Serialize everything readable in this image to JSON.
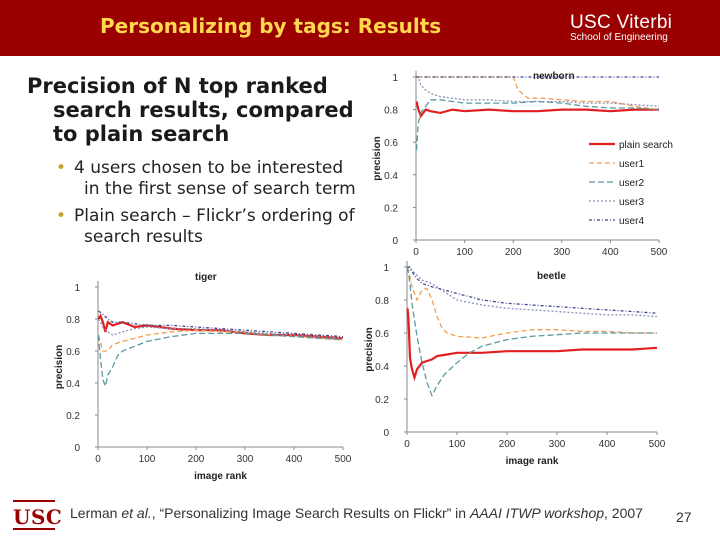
{
  "header": {
    "title": "Personalizing by tags: Results",
    "logo_line1": "USC Viterbi",
    "logo_line2": "School of Engineering"
  },
  "heading": {
    "line1": "Precision of N top ranked",
    "line2": "search results, compared",
    "line3": "to plain search"
  },
  "bullets": [
    {
      "line1": "4 users chosen to be interested",
      "line2": "in the first sense of search term"
    },
    {
      "line1": "Plain search – Flickr’s ordering of",
      "line2": "search results"
    }
  ],
  "colors": {
    "header_bg": "#9a0000",
    "title": "#ffd84d",
    "plain": "#e02020",
    "user1": "#f0a050",
    "user2": "#5a9aa0",
    "user3": "#8890b8",
    "user4": "#404890"
  },
  "chart_data": [
    {
      "type": "line",
      "title": "newborn",
      "xlabel": "",
      "ylabel": "precision",
      "xlim": [
        0,
        500
      ],
      "ylim": [
        0,
        1
      ],
      "xticks": [
        "0",
        "100",
        "200",
        "300",
        "400",
        "500"
      ],
      "yticks": [
        "0",
        "0.2",
        "0.4",
        "0.6",
        "0.8",
        "1"
      ],
      "legend_position": "right",
      "series": [
        {
          "name": "plain search",
          "x": [
            1,
            5,
            10,
            20,
            30,
            50,
            75,
            100,
            150,
            200,
            250,
            300,
            350,
            400,
            450,
            500
          ],
          "y": [
            0.85,
            0.8,
            0.76,
            0.8,
            0.79,
            0.78,
            0.8,
            0.79,
            0.8,
            0.79,
            0.79,
            0.8,
            0.8,
            0.79,
            0.8,
            0.8
          ]
        },
        {
          "name": "user1",
          "x": [
            1,
            50,
            100,
            150,
            200,
            210,
            230,
            260,
            300,
            350,
            400,
            450,
            500
          ],
          "y": [
            1,
            1,
            1,
            1,
            1,
            0.92,
            0.87,
            0.87,
            0.86,
            0.85,
            0.85,
            0.82,
            0.8
          ]
        },
        {
          "name": "user2",
          "x": [
            1,
            3,
            5,
            8,
            12,
            20,
            30,
            50,
            75,
            100,
            150,
            200,
            250,
            300,
            350,
            400,
            450,
            500
          ],
          "y": [
            0.55,
            0.65,
            0.72,
            0.76,
            0.79,
            0.82,
            0.86,
            0.86,
            0.85,
            0.84,
            0.84,
            0.84,
            0.85,
            0.84,
            0.82,
            0.81,
            0.81,
            0.8
          ]
        },
        {
          "name": "user3",
          "x": [
            1,
            5,
            10,
            20,
            30,
            50,
            75,
            100,
            150,
            200,
            250,
            300,
            350,
            400,
            450,
            500
          ],
          "y": [
            1,
            1,
            0.95,
            0.92,
            0.9,
            0.88,
            0.87,
            0.86,
            0.86,
            0.85,
            0.85,
            0.85,
            0.84,
            0.84,
            0.83,
            0.82
          ]
        },
        {
          "name": "user4",
          "x": [
            1,
            50,
            100,
            200,
            300,
            400,
            500
          ],
          "y": [
            1,
            1,
            1,
            1,
            1,
            1,
            1
          ]
        }
      ]
    },
    {
      "type": "line",
      "title": "tiger",
      "xlabel": "image rank",
      "ylabel": "precision",
      "xlim": [
        0,
        500
      ],
      "ylim": [
        0,
        1
      ],
      "xticks": [
        "0",
        "100",
        "200",
        "300",
        "400",
        "500"
      ],
      "yticks": [
        "0",
        "0.2",
        "0.4",
        "0.6",
        "0.8",
        "1"
      ],
      "series": [
        {
          "name": "plain search",
          "x": [
            1,
            5,
            10,
            15,
            20,
            30,
            50,
            75,
            100,
            150,
            200,
            250,
            300,
            350,
            400,
            450,
            500
          ],
          "y": [
            0.8,
            0.82,
            0.78,
            0.72,
            0.78,
            0.76,
            0.78,
            0.75,
            0.76,
            0.74,
            0.73,
            0.73,
            0.71,
            0.7,
            0.7,
            0.69,
            0.68
          ]
        },
        {
          "name": "user1",
          "x": [
            1,
            10,
            20,
            30,
            50,
            75,
            100,
            150,
            200,
            250,
            300,
            350,
            400,
            450,
            500
          ],
          "y": [
            0.7,
            0.6,
            0.6,
            0.64,
            0.66,
            0.68,
            0.7,
            0.72,
            0.73,
            0.72,
            0.72,
            0.7,
            0.69,
            0.68,
            0.67
          ]
        },
        {
          "name": "user2",
          "x": [
            1,
            5,
            10,
            15,
            20,
            30,
            40,
            50,
            75,
            100,
            150,
            200,
            250,
            300,
            350,
            400,
            450,
            500
          ],
          "y": [
            0.7,
            0.55,
            0.42,
            0.38,
            0.45,
            0.5,
            0.57,
            0.6,
            0.63,
            0.66,
            0.69,
            0.71,
            0.71,
            0.71,
            0.7,
            0.69,
            0.68,
            0.67
          ]
        },
        {
          "name": "user3",
          "x": [
            1,
            5,
            10,
            20,
            30,
            50,
            75,
            100,
            150,
            200,
            250,
            300,
            350,
            400,
            450,
            500
          ],
          "y": [
            0.8,
            0.78,
            0.75,
            0.72,
            0.7,
            0.72,
            0.74,
            0.75,
            0.74,
            0.74,
            0.73,
            0.72,
            0.71,
            0.7,
            0.69,
            0.68
          ]
        },
        {
          "name": "user4",
          "x": [
            1,
            10,
            20,
            30,
            50,
            75,
            100,
            150,
            200,
            250,
            300,
            350,
            400,
            450,
            500
          ],
          "y": [
            0.85,
            0.83,
            0.8,
            0.78,
            0.78,
            0.77,
            0.76,
            0.76,
            0.75,
            0.74,
            0.73,
            0.72,
            0.71,
            0.7,
            0.69
          ]
        }
      ]
    },
    {
      "type": "line",
      "title": "beetle",
      "xlabel": "image rank",
      "ylabel": "precision",
      "xlim": [
        0,
        500
      ],
      "ylim": [
        0,
        1
      ],
      "xticks": [
        "0",
        "100",
        "200",
        "300",
        "400",
        "500"
      ],
      "yticks": [
        "0",
        "0.2",
        "0.4",
        "0.6",
        "0.8",
        "1"
      ],
      "series": [
        {
          "name": "plain search",
          "x": [
            1,
            3,
            6,
            10,
            15,
            20,
            30,
            40,
            50,
            60,
            80,
            100,
            150,
            200,
            250,
            300,
            350,
            400,
            450,
            500
          ],
          "y": [
            0.75,
            0.68,
            0.45,
            0.38,
            0.33,
            0.38,
            0.42,
            0.43,
            0.44,
            0.46,
            0.47,
            0.48,
            0.48,
            0.49,
            0.49,
            0.49,
            0.5,
            0.5,
            0.5,
            0.51
          ]
        },
        {
          "name": "user1",
          "x": [
            1,
            5,
            10,
            20,
            30,
            40,
            50,
            60,
            70,
            80,
            100,
            150,
            200,
            250,
            300,
            350,
            400,
            450,
            500
          ],
          "y": [
            1,
            0.95,
            0.88,
            0.8,
            0.86,
            0.87,
            0.8,
            0.7,
            0.63,
            0.6,
            0.58,
            0.57,
            0.6,
            0.62,
            0.62,
            0.61,
            0.61,
            0.6,
            0.6
          ]
        },
        {
          "name": "user2",
          "x": [
            1,
            5,
            10,
            20,
            30,
            40,
            50,
            60,
            75,
            100,
            125,
            150,
            200,
            250,
            300,
            350,
            400,
            450,
            500
          ],
          "y": [
            1,
            0.92,
            0.78,
            0.58,
            0.42,
            0.3,
            0.22,
            0.28,
            0.35,
            0.42,
            0.48,
            0.52,
            0.56,
            0.58,
            0.59,
            0.6,
            0.6,
            0.6,
            0.6
          ]
        },
        {
          "name": "user3",
          "x": [
            1,
            5,
            10,
            20,
            30,
            50,
            75,
            100,
            150,
            200,
            250,
            300,
            350,
            400,
            450,
            500
          ],
          "y": [
            1,
            1,
            0.98,
            0.95,
            0.92,
            0.9,
            0.85,
            0.8,
            0.77,
            0.75,
            0.74,
            0.73,
            0.72,
            0.71,
            0.71,
            0.7
          ]
        },
        {
          "name": "user4",
          "x": [
            1,
            5,
            10,
            20,
            30,
            50,
            75,
            100,
            150,
            200,
            250,
            300,
            350,
            400,
            450,
            500
          ],
          "y": [
            1,
            1,
            0.97,
            0.93,
            0.9,
            0.88,
            0.86,
            0.84,
            0.8,
            0.78,
            0.77,
            0.76,
            0.75,
            0.74,
            0.73,
            0.72
          ]
        }
      ]
    }
  ],
  "footer": {
    "logo": "USC",
    "citation_prefix": "Lerman ",
    "citation_etal": "et al.",
    "citation_mid": ", “Personalizing Image Search Results on Flickr” in ",
    "citation_venue": "AAAI ITWP workshop",
    "citation_year": ", 2007",
    "page_number": "27"
  }
}
